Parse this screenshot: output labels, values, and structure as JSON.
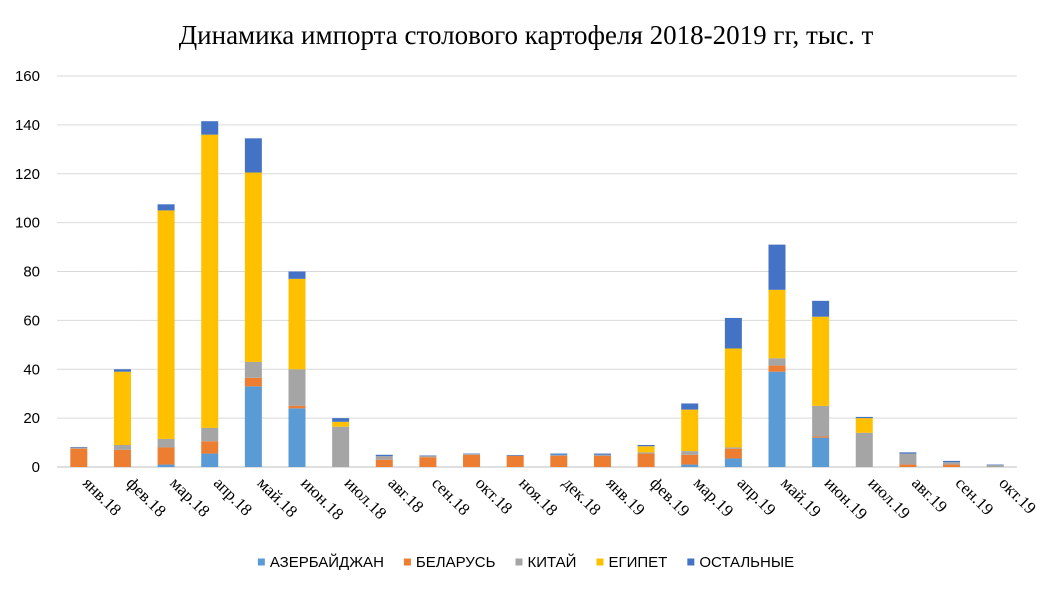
{
  "chart_data": {
    "type": "bar",
    "stacked": true,
    "title": "Динамика импорта столового картофеля 2018-2019  гг, тыс. т",
    "xlabel": "",
    "ylabel": "",
    "ylim": [
      0,
      160
    ],
    "yticks": [
      "0",
      "20",
      "40",
      "60",
      "80",
      "100",
      "120",
      "140",
      "160"
    ],
    "grid": true,
    "legend_position": "bottom",
    "categories": [
      "янв.18",
      "фев.18",
      "мар.18",
      "апр.18",
      "май.18",
      "июн.18",
      "июл.18",
      "авг.18",
      "сен.18",
      "окт.18",
      "ноя.18",
      "дек.18",
      "янв.19",
      "фев.19",
      "мар.19",
      "апр.19",
      "май.19",
      "июн.19",
      "июл.19",
      "авг.19",
      "сен.19",
      "окт.19"
    ],
    "series": [
      {
        "name": "АЗЕРБАЙДЖАН",
        "color": "#5B9BD5",
        "values": [
          0,
          0,
          1,
          5.5,
          33,
          24,
          0,
          0,
          0,
          0,
          0,
          0,
          0,
          0,
          1,
          3.5,
          39,
          12,
          0,
          0,
          0,
          0
        ]
      },
      {
        "name": "БЕЛАРУСЬ",
        "color": "#ED7D31",
        "values": [
          7.5,
          7,
          7,
          5,
          3.5,
          1,
          0,
          3,
          4,
          5,
          4.5,
          4.5,
          4.5,
          5.5,
          4,
          4,
          2.5,
          0.5,
          0,
          1,
          1,
          0
        ]
      },
      {
        "name": "КИТАЙ",
        "color": "#A5A5A5",
        "values": [
          0.5,
          2,
          3.5,
          5.5,
          6.5,
          15,
          16.5,
          1.5,
          0.5,
          0.3,
          0.2,
          0.5,
          0.5,
          0.5,
          1.5,
          0.5,
          3,
          12.5,
          14,
          4.5,
          1,
          0.8
        ]
      },
      {
        "name": "ЕГИПЕТ",
        "color": "#FFC000",
        "values": [
          0,
          30,
          93.5,
          120,
          77.5,
          37,
          2,
          0,
          0,
          0,
          0,
          0,
          0,
          2.5,
          17,
          40.5,
          28,
          36.5,
          6,
          0,
          0,
          0
        ]
      },
      {
        "name": "ОСТАЛЬНЫЕ",
        "color": "#4472C4",
        "values": [
          0.2,
          1,
          2.5,
          5.5,
          14,
          3,
          1.5,
          0.5,
          0.2,
          0.2,
          0.2,
          0.5,
          0.5,
          0.5,
          2.5,
          12.5,
          18.5,
          6.5,
          0.5,
          0.5,
          0.5,
          0.2
        ]
      }
    ]
  }
}
